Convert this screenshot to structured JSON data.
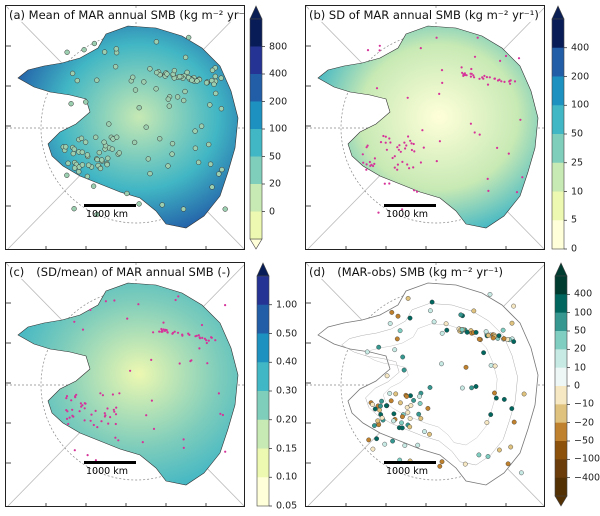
{
  "scale_label": "1000 km",
  "panels": [
    {
      "id": "a",
      "title": "(a) Mean of MAR annual SMB (kg m⁻² yr⁻¹)",
      "fill_inner": "#c7e9b4",
      "fill_mid": "#41b6c4",
      "fill_outer": "#225ea8",
      "points": "obs-open",
      "point_color": "#9ccfb0",
      "colorbar": {
        "ticks": [
          "800",
          "400",
          "200",
          "100",
          "50",
          "20",
          "0"
        ],
        "colors": [
          "#081d58",
          "#253494",
          "#225ea8",
          "#1d91c0",
          "#41b6c4",
          "#7fcdbb",
          "#c7e9b4",
          "#edf8b1"
        ],
        "extend_top": "#0b1f55",
        "extend_bottom": "#ffffd9"
      }
    },
    {
      "id": "b",
      "title": "(b) SD of MAR annual SMB (kg m⁻² yr⁻¹)",
      "fill_inner": "#ffffd9",
      "fill_mid": "#c7e9b4",
      "fill_outer": "#41b6c4",
      "points": "magenta",
      "point_color": "#d6339a",
      "colorbar": {
        "ticks": [
          "400",
          "200",
          "100",
          "50",
          "25",
          "10",
          "5",
          "0"
        ],
        "colors": [
          "#081d58",
          "#225ea8",
          "#1d91c0",
          "#41b6c4",
          "#7fcdbb",
          "#c7e9b4",
          "#edf8b1",
          "#ffffd9"
        ],
        "extend_top": "#0b1f55",
        "extend_bottom": null
      }
    },
    {
      "id": "c",
      "title": "(SD/mean) of MAR annual SMB (-)",
      "label": "(c)",
      "fill_inner": "#edf8b1",
      "fill_mid": "#7fcdbb",
      "fill_outer": "#41b6c4",
      "points": "magenta",
      "point_color": "#d6339a",
      "colorbar": {
        "ticks": [
          "1.00",
          "0.50",
          "0.40",
          "0.30",
          "0.20",
          "0.15",
          "0.10",
          "0.05"
        ],
        "colors": [
          "#253494",
          "#225ea8",
          "#1d91c0",
          "#41b6c4",
          "#7fcdbb",
          "#c7e9b4",
          "#edf8b1",
          "#ffffd9"
        ],
        "extend_top": "#081d58",
        "extend_bottom": null
      }
    },
    {
      "id": "d",
      "title": "(MAR-obs) SMB (kg m⁻² yr⁻¹)",
      "label": "(d)",
      "fill_inner": "#ffffff",
      "fill_mid": "#ffffff",
      "fill_outer": "#ffffff",
      "points": "diff",
      "point_color": "#80cdc1",
      "colorbar": {
        "ticks": [
          "400",
          "100",
          "50",
          "20",
          "10",
          "0",
          "−10",
          "−20",
          "−50",
          "−100",
          "−400"
        ],
        "colors": [
          "#003c30",
          "#01665e",
          "#35978f",
          "#80cdc1",
          "#c7eae5",
          "#eef7f5",
          "#f6e8c3",
          "#dfc27d",
          "#bf812d",
          "#8c510a",
          "#6b3d0a",
          "#543005"
        ],
        "extend_top": "#003c30",
        "extend_bottom": "#543005"
      }
    }
  ]
}
